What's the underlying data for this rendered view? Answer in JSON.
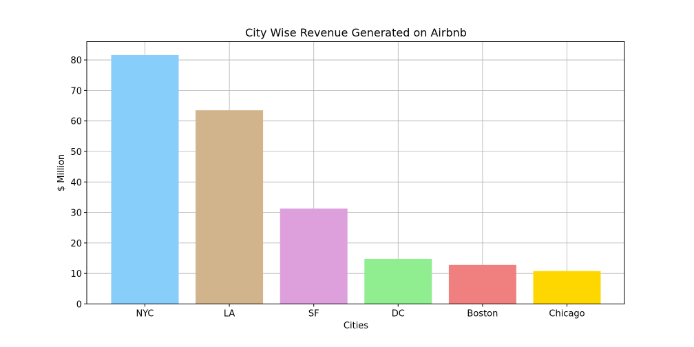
{
  "chart_data": {
    "type": "bar",
    "title": "City Wise Revenue Generated on Airbnb",
    "xlabel": "Cities",
    "ylabel": "$ Million",
    "categories": [
      "NYC",
      "LA",
      "SF",
      "DC",
      "Boston",
      "Chicago"
    ],
    "values": [
      81.6,
      63.5,
      31.3,
      14.8,
      12.8,
      10.8
    ],
    "colors": [
      "#87CEFA",
      "#D2B48C",
      "#DDA0DD",
      "#90EE90",
      "#F08080",
      "#FFD700"
    ],
    "ylim": [
      0,
      86
    ],
    "yticks": [
      0,
      10,
      20,
      30,
      40,
      50,
      60,
      70,
      80
    ],
    "grid": true
  }
}
